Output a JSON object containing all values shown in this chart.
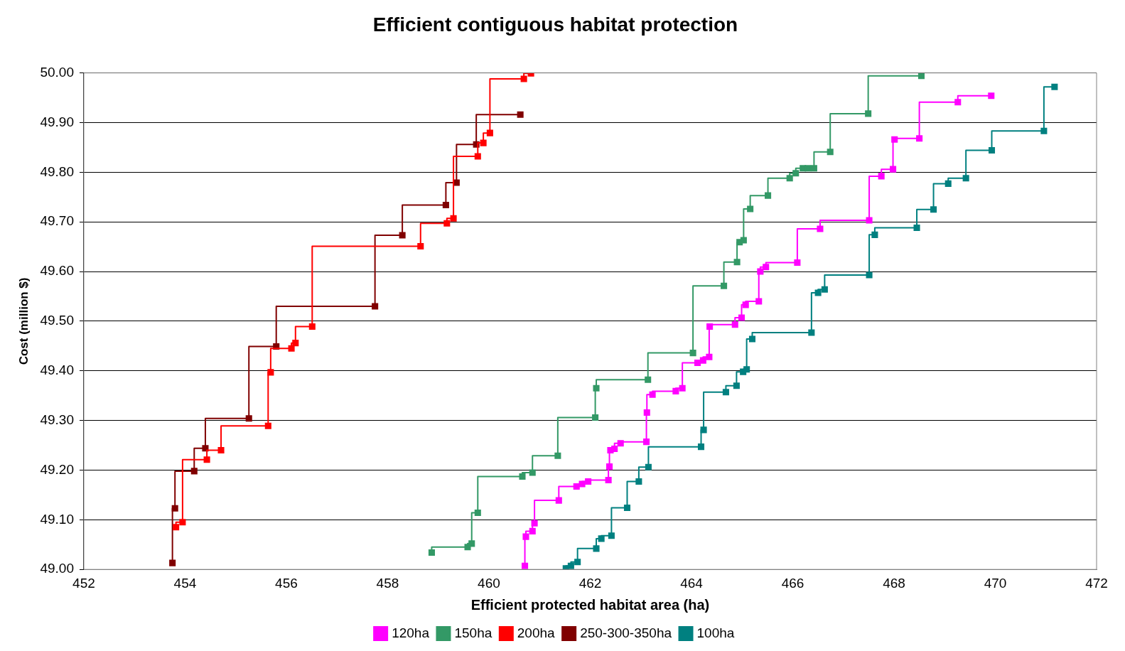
{
  "chart_data": {
    "type": "step",
    "title": "Efficient contiguous habitat protection",
    "xlabel": "Efficient protected habitat area (ha)",
    "ylabel": "Cost (million $)",
    "xlim": [
      452,
      472
    ],
    "xticks": [
      452,
      454,
      456,
      458,
      460,
      462,
      464,
      466,
      468,
      470,
      472
    ],
    "ylim": [
      49,
      50
    ],
    "yticks": [
      {
        "value": 49,
        "label": "49.00"
      },
      {
        "value": 49.1,
        "label": "49.10"
      },
      {
        "value": 49.2,
        "label": "49.20"
      },
      {
        "value": 49.3,
        "label": "49.30"
      },
      {
        "value": 49.4,
        "label": "49.40"
      },
      {
        "value": 49.5,
        "label": "49.50"
      },
      {
        "value": 49.6,
        "label": "49.60"
      },
      {
        "value": 49.7,
        "label": "49.70"
      },
      {
        "value": 49.8,
        "label": "49.80"
      },
      {
        "value": 49.9,
        "label": "49.90"
      },
      {
        "value": 50,
        "label": "50.00"
      }
    ],
    "grid": "y",
    "legend": "bottom",
    "marker": "square",
    "line_style": "solid",
    "series": [
      {
        "name": "120ha",
        "color": "#ff00ff",
        "x": [
          460.71,
          460.73,
          460.86,
          460.9,
          461.38,
          461.73,
          461.84,
          461.96,
          462.36,
          462.38,
          462.4,
          462.48,
          462.6,
          463.11,
          463.12,
          463.23,
          463.69,
          463.82,
          464.12,
          464.23,
          464.35,
          464.36,
          464.86,
          464.99,
          465.07,
          465.33,
          465.36,
          465.47,
          466.09,
          466.54,
          467.51,
          467.75,
          467.98,
          468.01,
          468.5,
          469.26,
          469.92
        ],
        "values": [
          49.007,
          49.066,
          49.077,
          49.093,
          49.139,
          49.167,
          49.172,
          49.177,
          49.18,
          49.207,
          49.24,
          49.243,
          49.254,
          49.257,
          49.316,
          49.352,
          49.359,
          49.365,
          49.416,
          49.421,
          49.428,
          49.489,
          49.493,
          49.507,
          49.533,
          49.54,
          49.6,
          49.609,
          49.618,
          49.686,
          49.703,
          49.792,
          49.806,
          49.866,
          49.868,
          49.941,
          49.954
        ]
      },
      {
        "name": "150ha",
        "color": "#339966",
        "x": [
          458.87,
          459.58,
          459.66,
          459.78,
          460.66,
          460.86,
          461.36,
          462.1,
          462.12,
          463.14,
          464.03,
          464.64,
          464.9,
          464.95,
          465.03,
          465.16,
          465.51,
          465.94,
          466.06,
          466.2,
          466.3,
          466.42,
          466.74,
          467.49,
          468.54
        ],
        "values": [
          49.034,
          49.045,
          49.052,
          49.114,
          49.187,
          49.195,
          49.229,
          49.306,
          49.365,
          49.382,
          49.436,
          49.571,
          49.619,
          49.659,
          49.663,
          49.726,
          49.753,
          49.788,
          49.798,
          49.808,
          49.808,
          49.808,
          49.841,
          49.918,
          49.994
        ]
      },
      {
        "name": "200ha",
        "color": "#ff0000",
        "x": [
          453.82,
          453.95,
          454.43,
          454.71,
          455.64,
          455.69,
          456.1,
          456.18,
          456.51,
          458.65,
          459.17,
          459.3,
          459.78,
          459.89,
          460.02,
          460.69,
          460.83
        ],
        "values": [
          49.085,
          49.095,
          49.221,
          49.24,
          49.289,
          49.397,
          49.445,
          49.456,
          49.489,
          49.651,
          49.697,
          49.707,
          49.832,
          49.859,
          49.879,
          49.988,
          49.999
        ]
      },
      {
        "name": "250-300-350ha",
        "color": "#800000",
        "x": [
          453.75,
          453.8,
          454.18,
          454.4,
          455.26,
          455.8,
          457.75,
          458.29,
          459.15,
          459.36,
          459.75,
          460.62
        ],
        "values": [
          49.013,
          49.123,
          49.198,
          49.244,
          49.304,
          49.449,
          49.53,
          49.673,
          49.734,
          49.779,
          49.856,
          49.916
        ]
      },
      {
        "name": "100ha",
        "color": "#008080",
        "x": [
          461.52,
          461.62,
          461.75,
          462.12,
          462.22,
          462.42,
          462.73,
          462.96,
          463.15,
          464.19,
          464.24,
          464.68,
          464.89,
          465.02,
          465.09,
          465.2,
          466.37,
          466.5,
          466.63,
          467.51,
          467.62,
          468.45,
          468.78,
          469.07,
          469.42,
          469.93,
          470.96,
          471.17
        ],
        "values": [
          49.002,
          49.007,
          49.015,
          49.042,
          49.062,
          49.068,
          49.124,
          49.177,
          49.206,
          49.247,
          49.281,
          49.357,
          49.37,
          49.398,
          49.403,
          49.464,
          49.477,
          49.557,
          49.564,
          49.593,
          49.674,
          49.688,
          49.725,
          49.777,
          49.788,
          49.844,
          49.883,
          49.972
        ]
      }
    ]
  }
}
